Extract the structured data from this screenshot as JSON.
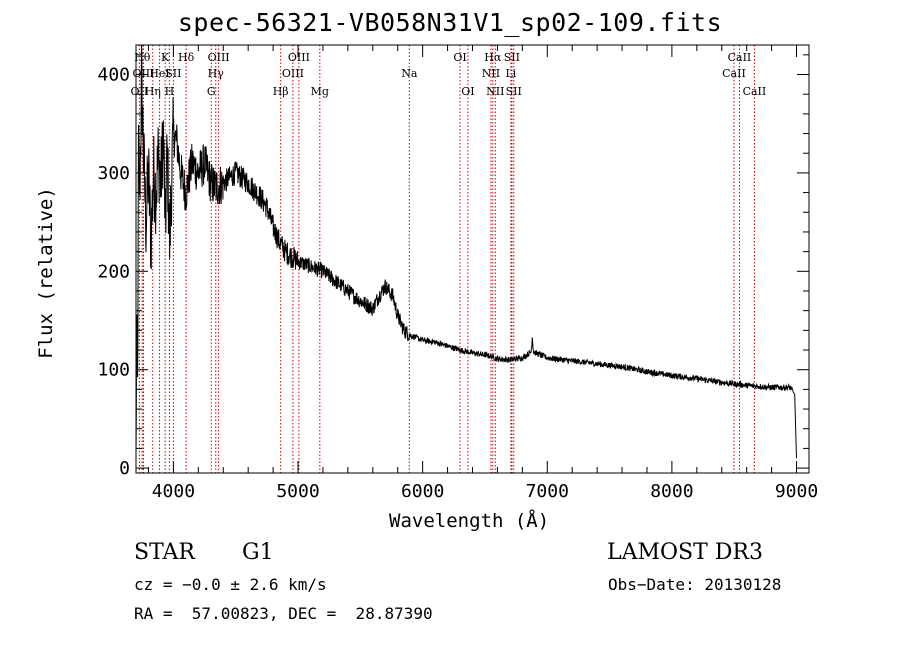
{
  "chart_data": {
    "type": "line",
    "title": "spec-56321-VB058N31V1_sp02-109.fits",
    "xlabel": "Wavelength (Å)",
    "ylabel": "Flux (relative)",
    "xlim": [
      3700,
      9100
    ],
    "ylim": [
      -5,
      430
    ],
    "xticks": [
      4000,
      5000,
      6000,
      7000,
      8000,
      9000
    ],
    "yticks": [
      0,
      100,
      200,
      300,
      400
    ],
    "spectrum_anchors": [
      [
        3700,
        0
      ],
      [
        3705,
        140
      ],
      [
        3712,
        60
      ],
      [
        3720,
        330
      ],
      [
        3730,
        280
      ],
      [
        3745,
        400
      ],
      [
        3760,
        320
      ],
      [
        3780,
        250
      ],
      [
        3800,
        300
      ],
      [
        3820,
        230
      ],
      [
        3840,
        300
      ],
      [
        3860,
        280
      ],
      [
        3880,
        320
      ],
      [
        3900,
        290
      ],
      [
        3920,
        340
      ],
      [
        3935,
        240
      ],
      [
        3950,
        320
      ],
      [
        3970,
        230
      ],
      [
        3990,
        310
      ],
      [
        4000,
        340
      ],
      [
        4030,
        330
      ],
      [
        4060,
        300
      ],
      [
        4100,
        280
      ],
      [
        4150,
        310
      ],
      [
        4200,
        300
      ],
      [
        4250,
        310
      ],
      [
        4300,
        290
      ],
      [
        4340,
        285
      ],
      [
        4400,
        290
      ],
      [
        4500,
        300
      ],
      [
        4600,
        290
      ],
      [
        4700,
        275
      ],
      [
        4750,
        265
      ],
      [
        4800,
        245
      ],
      [
        4850,
        230
      ],
      [
        4900,
        220
      ],
      [
        5000,
        210
      ],
      [
        5100,
        205
      ],
      [
        5200,
        200
      ],
      [
        5300,
        190
      ],
      [
        5400,
        180
      ],
      [
        5500,
        170
      ],
      [
        5600,
        162
      ],
      [
        5650,
        175
      ],
      [
        5700,
        185
      ],
      [
        5760,
        175
      ],
      [
        5800,
        155
      ],
      [
        5850,
        140
      ],
      [
        5900,
        135
      ],
      [
        6000,
        130
      ],
      [
        6100,
        128
      ],
      [
        6200,
        124
      ],
      [
        6300,
        120
      ],
      [
        6400,
        117
      ],
      [
        6500,
        115
      ],
      [
        6563,
        113
      ],
      [
        6600,
        111
      ],
      [
        6700,
        110
      ],
      [
        6800,
        112
      ],
      [
        6870,
        118
      ],
      [
        6880,
        133
      ],
      [
        6890,
        118
      ],
      [
        7000,
        112
      ],
      [
        7200,
        109
      ],
      [
        7400,
        106
      ],
      [
        7600,
        103
      ],
      [
        7800,
        98
      ],
      [
        8000,
        94
      ],
      [
        8200,
        91
      ],
      [
        8400,
        87
      ],
      [
        8600,
        84
      ],
      [
        8800,
        82
      ],
      [
        8950,
        82
      ],
      [
        8985,
        75
      ],
      [
        9000,
        10
      ]
    ],
    "line_markers": [
      {
        "label": "OII",
        "wavelength": 3727,
        "row": 3
      },
      {
        "label": "Hθ",
        "wavelength": 3750,
        "row": 1
      },
      {
        "label": "OIII",
        "wavelength": 3760,
        "row": 2
      },
      {
        "label": "Hη",
        "wavelength": 3835,
        "row": 3
      },
      {
        "label": "HeI",
        "wavelength": 3889,
        "row": 2
      },
      {
        "label": "K",
        "wavelength": 3934,
        "row": 1
      },
      {
        "label": "H",
        "wavelength": 3968,
        "row": 3
      },
      {
        "label": "SII",
        "wavelength": 4000,
        "row": 2
      },
      {
        "label": "Hδ",
        "wavelength": 4102,
        "row": 1
      },
      {
        "label": "G",
        "wavelength": 4304,
        "row": 3
      },
      {
        "label": "Hγ",
        "wavelength": 4340,
        "row": 2
      },
      {
        "label": "OIII",
        "wavelength": 4363,
        "row": 1
      },
      {
        "label": "Hβ",
        "wavelength": 4861,
        "row": 3
      },
      {
        "label": "OIII",
        "wavelength": 4959,
        "row": 2
      },
      {
        "label": "OIII",
        "wavelength": 5007,
        "row": 1
      },
      {
        "label": "Mg",
        "wavelength": 5175,
        "row": 3
      },
      {
        "label": "Na",
        "wavelength": 5893,
        "row": 2
      },
      {
        "label": "OI",
        "wavelength": 6300,
        "row": 1
      },
      {
        "label": "OI",
        "wavelength": 6363,
        "row": 3
      },
      {
        "label": "NII",
        "wavelength": 6548,
        "row": 2
      },
      {
        "label": "Hα",
        "wavelength": 6563,
        "row": 1
      },
      {
        "label": "NII",
        "wavelength": 6583,
        "row": 3
      },
      {
        "label": "Li",
        "wavelength": 6708,
        "row": 2
      },
      {
        "label": "SII",
        "wavelength": 6716,
        "row": 1
      },
      {
        "label": "SII",
        "wavelength": 6731,
        "row": 3
      },
      {
        "label": "CaII",
        "wavelength": 8498,
        "row": 2
      },
      {
        "label": "CaII",
        "wavelength": 8542,
        "row": 1
      },
      {
        "label": "CaII",
        "wavelength": 8662,
        "row": 3
      }
    ],
    "line_color": "#000000",
    "marker_color": "#cc0000"
  },
  "info": {
    "object_class": "STAR",
    "subclass": "G1",
    "survey": "LAMOST DR3",
    "cz": "cz = −0.0 ± 2.6 km/s",
    "obs_date": "Obs−Date: 20130128",
    "coords": "RA =  57.00823, DEC =  28.87390"
  }
}
